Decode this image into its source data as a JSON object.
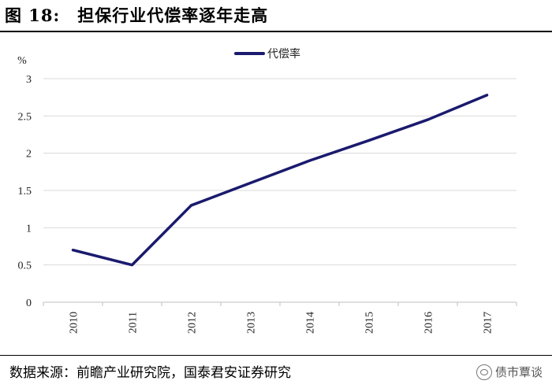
{
  "figure": {
    "title": "图 18:　担保行业代偿率逐年走高",
    "source": "数据来源：前瞻产业研究院，国泰君安证券研究",
    "watermark": "债市覃谈"
  },
  "chart_data": {
    "type": "line",
    "title": "",
    "unit_label": "%",
    "x": [
      "2010",
      "2011",
      "2012",
      "2013",
      "2014",
      "2015",
      "2016",
      "2017"
    ],
    "series": [
      {
        "name": "代偿率",
        "values": [
          0.7,
          0.5,
          1.3,
          1.6,
          1.9,
          2.17,
          2.45,
          2.78
        ],
        "color": "#1a1a6e"
      }
    ],
    "ylim": [
      0,
      3
    ],
    "yticks": [
      {
        "value": 0,
        "label": "0"
      },
      {
        "value": 0.5,
        "label": "0.5"
      },
      {
        "value": 1,
        "label": "1"
      },
      {
        "value": 1.5,
        "label": "1.5"
      },
      {
        "value": 2,
        "label": "2"
      },
      {
        "value": 2.5,
        "label": "2.5"
      },
      {
        "value": 3,
        "label": "3"
      }
    ],
    "grid": true,
    "legend": "top-center",
    "colors": {
      "line": "#1a1a6e",
      "grid": "#d9d9d9",
      "axis": "#bfbfbf"
    }
  }
}
